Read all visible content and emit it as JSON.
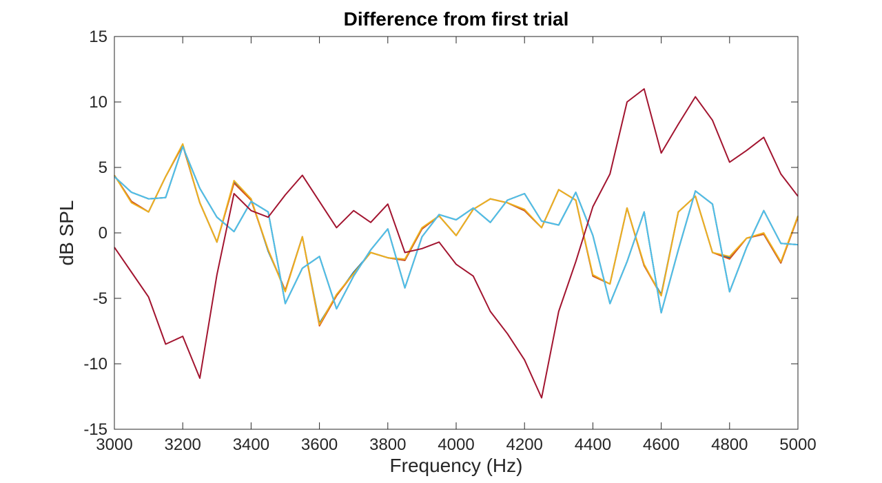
{
  "chart_data": {
    "type": "line",
    "title": "Difference from first trial",
    "xlabel": "Frequency (Hz)",
    "ylabel": "dB SPL",
    "xlim": [
      3000,
      5000
    ],
    "ylim": [
      -15,
      15
    ],
    "xticks": [
      3000,
      3200,
      3400,
      3600,
      3800,
      4000,
      4200,
      4400,
      4600,
      4800,
      5000
    ],
    "yticks": [
      -15,
      -10,
      -5,
      0,
      5,
      10,
      15
    ],
    "grid": false,
    "legend": "none",
    "x": [
      3000,
      3050,
      3100,
      3150,
      3200,
      3250,
      3300,
      3350,
      3400,
      3450,
      3500,
      3550,
      3600,
      3650,
      3700,
      3750,
      3800,
      3850,
      3900,
      3950,
      4000,
      4050,
      4100,
      4150,
      4200,
      4250,
      4300,
      4350,
      4400,
      4450,
      4500,
      4550,
      4600,
      4650,
      4700,
      4750,
      4800,
      4850,
      4900,
      4950,
      5000
    ],
    "series": [
      {
        "color": "#0072bd",
        "values": [
          4.4,
          2.4,
          1.6,
          4.3,
          6.7,
          2.3,
          -0.7,
          3.9,
          2.6,
          -1.4,
          -4.4,
          -0.3,
          -6.9,
          -4.8,
          -3.0,
          -1.5,
          -1.9,
          -2.1,
          0.3,
          1.3,
          -0.2,
          1.8,
          2.6,
          2.3,
          1.7,
          0.4,
          3.3,
          2.5,
          -3.3,
          -3.9,
          1.9,
          -2.5,
          -4.7,
          1.6,
          2.8,
          -1.5,
          -1.9,
          -0.4,
          -0.1,
          -2.3,
          1.3
        ]
      },
      {
        "color": "#d95319",
        "values": [
          4.4,
          2.4,
          1.6,
          4.3,
          6.7,
          2.3,
          -0.7,
          3.8,
          2.5,
          -1.3,
          -4.4,
          -0.3,
          -7.1,
          -4.8,
          -3.1,
          -1.5,
          -1.9,
          -2.1,
          0.3,
          1.3,
          -0.2,
          1.8,
          2.6,
          2.3,
          1.7,
          0.4,
          3.3,
          2.5,
          -3.3,
          -3.9,
          1.9,
          -2.5,
          -4.8,
          1.6,
          2.8,
          -1.5,
          -2.0,
          -0.4,
          -0.1,
          -2.3,
          1.2
        ]
      },
      {
        "color": "#edb120",
        "values": [
          4.4,
          2.3,
          1.6,
          4.3,
          6.8,
          2.3,
          -0.7,
          4.0,
          2.6,
          -1.3,
          -4.5,
          -0.3,
          -7.0,
          -4.7,
          -3.1,
          -1.5,
          -1.9,
          -2.0,
          0.4,
          1.3,
          -0.2,
          1.8,
          2.6,
          2.3,
          1.8,
          0.4,
          3.3,
          2.5,
          -3.2,
          -3.9,
          1.9,
          -2.4,
          -4.8,
          1.6,
          2.8,
          -1.5,
          -1.8,
          -0.4,
          0.0,
          -2.2,
          1.3
        ]
      },
      {
        "color": "#7e2f8e",
        "values": [
          4.3,
          3.1,
          2.6,
          2.7,
          6.6,
          3.4,
          1.2,
          0.1,
          2.4,
          1.6,
          -5.4,
          -2.7,
          -1.8,
          -5.8,
          -3.3,
          -1.3,
          0.3,
          -4.2,
          -0.3,
          1.4,
          1.0,
          1.9,
          0.8,
          2.5,
          3.0,
          0.9,
          0.6,
          3.1,
          -0.2,
          -5.4,
          -2.2,
          1.6,
          -6.1,
          -1.3,
          3.2,
          2.2,
          -4.5,
          -1.1,
          1.7,
          -0.8,
          -0.9
        ]
      },
      {
        "color": "#77ac30",
        "values": [
          4.3,
          3.1,
          2.6,
          2.7,
          6.6,
          3.4,
          1.2,
          0.1,
          2.4,
          1.6,
          -5.4,
          -2.7,
          -1.8,
          -5.8,
          -3.3,
          -1.3,
          0.3,
          -4.2,
          -0.3,
          1.4,
          1.0,
          1.9,
          0.8,
          2.5,
          3.0,
          0.9,
          0.6,
          3.1,
          -0.2,
          -5.4,
          -2.2,
          1.6,
          -6.1,
          -1.3,
          3.2,
          2.2,
          -4.5,
          -1.1,
          1.7,
          -0.8,
          -0.9
        ]
      },
      {
        "color": "#4dbeee",
        "values": [
          4.3,
          3.1,
          2.6,
          2.7,
          6.6,
          3.4,
          1.2,
          0.1,
          2.4,
          1.6,
          -5.4,
          -2.7,
          -1.8,
          -5.8,
          -3.3,
          -1.3,
          0.3,
          -4.2,
          -0.3,
          1.4,
          1.0,
          1.9,
          0.8,
          2.5,
          3.0,
          0.9,
          0.6,
          3.1,
          -0.2,
          -5.4,
          -2.2,
          1.6,
          -6.1,
          -1.3,
          3.2,
          2.2,
          -4.5,
          -1.1,
          1.7,
          -0.8,
          -0.9
        ]
      },
      {
        "color": "#a2142f",
        "values": [
          -1.1,
          -3.0,
          -4.9,
          -8.5,
          -7.9,
          -11.1,
          -3.2,
          3.0,
          1.7,
          1.2,
          2.9,
          4.4,
          2.4,
          0.4,
          1.7,
          0.8,
          2.2,
          -1.5,
          -1.2,
          -0.7,
          -2.4,
          -3.3,
          -6.0,
          -7.7,
          -9.7,
          -12.6,
          -6.0,
          -2.2,
          2.0,
          4.5,
          10.0,
          11.0,
          6.1,
          8.3,
          10.4,
          8.6,
          5.4,
          6.3,
          7.3,
          4.5,
          2.8
        ]
      }
    ]
  }
}
